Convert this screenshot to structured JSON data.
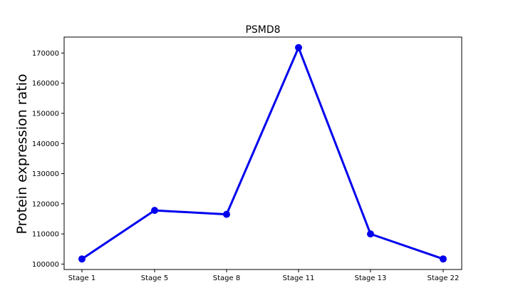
{
  "chart_data": {
    "type": "line",
    "title": "PSMD8",
    "xlabel": "",
    "ylabel": "Protein expression ratio",
    "categories": [
      "Stage 1",
      "Stage 5",
      "Stage 8",
      "Stage 11",
      "Stage 13",
      "Stage 22"
    ],
    "series": [
      {
        "values": [
          101700,
          117800,
          116500,
          171800,
          110000,
          101700
        ],
        "color": "#0000ee"
      }
    ],
    "ylim": [
      98200,
      175300
    ],
    "yticks": [
      100000,
      110000,
      120000,
      130000,
      140000,
      150000,
      160000,
      170000
    ],
    "ytick_labels": [
      "100000",
      "110000",
      "120000",
      "130000",
      "140000",
      "150000",
      "160000",
      "170000"
    ],
    "grid": false,
    "legend": "none",
    "marker": "circle"
  }
}
